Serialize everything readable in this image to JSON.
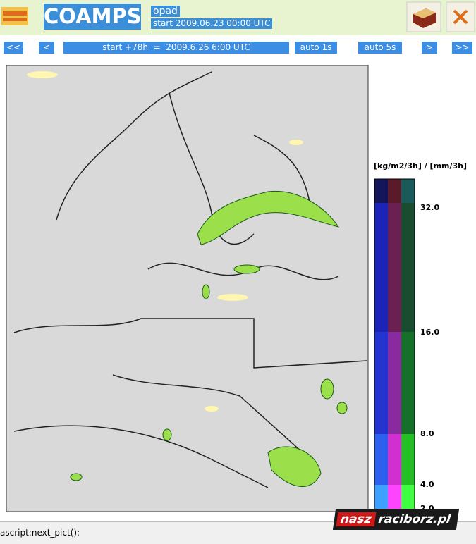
{
  "header": {
    "title": "COAMPS",
    "parameter": "opad",
    "start": "start 2009.06.23 00:00 UTC"
  },
  "nav": {
    "buttons": [
      "<<",
      "<",
      "auto 1s",
      "auto 5s",
      ">",
      ">>"
    ],
    "status": "start +78h  =  2009.6.26 6:00 UTC"
  },
  "legend": {
    "unit": "[kg/m2/3h] / [mm/3h]",
    "ticks": [
      "32.0",
      "16.0",
      "8.0",
      "4.0",
      "2.0"
    ]
  },
  "statusbar": {
    "text": "ascript:next_pict();"
  },
  "watermark": {
    "part1": "nasz",
    "part2": "raciborz.pl"
  }
}
